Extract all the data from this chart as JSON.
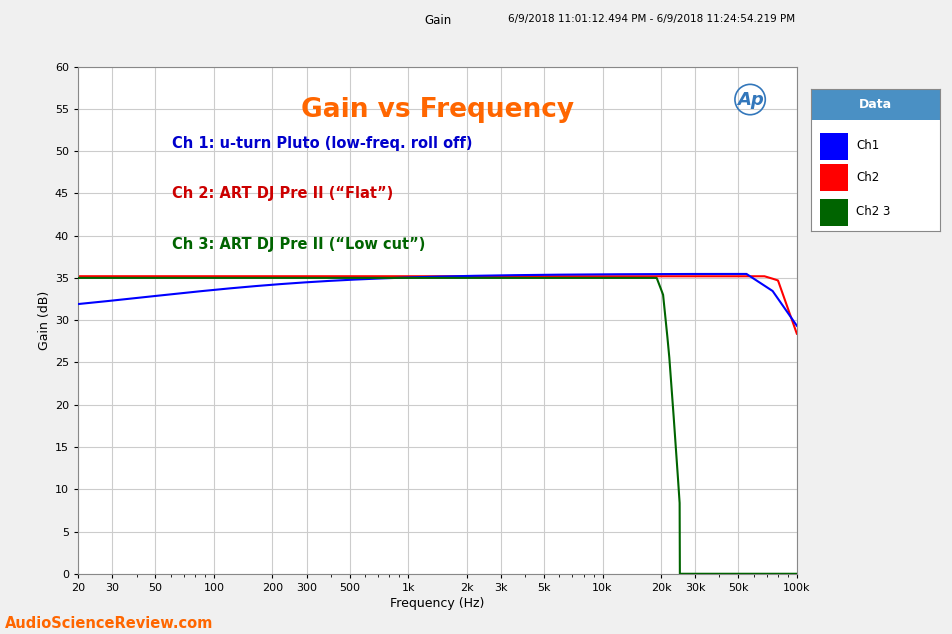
{
  "title": "Gain vs Frequency",
  "supertitle": "Gain",
  "timestamp": "6/9/2018 11:01:12.494 PM - 6/9/2018 11:24:54.219 PM",
  "xlabel": "Frequency (Hz)",
  "ylabel": "Gain (dB)",
  "annotation_ch1": "Ch 1: u-turn Pluto (low-freq. roll off)",
  "annotation_ch2": "Ch 2: ART DJ Pre II (“Flat”)",
  "annotation_ch3": "Ch 3: ART DJ Pre II (“Low cut”)",
  "watermark": "AudioScienceReview.com",
  "legend_title": "Data",
  "legend_entries": [
    "Ch1",
    "Ch2",
    "Ch2 3"
  ],
  "ch1_color": "#0000FF",
  "ch2_color": "#FF0000",
  "ch3_color": "#006400",
  "title_color": "#FF6600",
  "annotation_ch1_color": "#0000CC",
  "annotation_ch2_color": "#CC0000",
  "annotation_ch3_color": "#006400",
  "watermark_color": "#FF6600",
  "bg_color": "#F0F0F0",
  "plot_bg_color": "#FFFFFF",
  "grid_color": "#CCCCCC",
  "ylim": [
    0,
    60
  ],
  "yticks": [
    0,
    5,
    10,
    15,
    20,
    25,
    30,
    35,
    40,
    45,
    50,
    55,
    60
  ],
  "xtick_labels": [
    "20",
    "30",
    "50",
    "100",
    "200",
    "300",
    "500",
    "1k",
    "2k",
    "3k",
    "5k",
    "10k",
    "20k",
    "30k",
    "50k",
    "100k"
  ],
  "xtick_values": [
    20,
    30,
    50,
    100,
    200,
    300,
    500,
    1000,
    2000,
    3000,
    5000,
    10000,
    20000,
    30000,
    50000,
    100000
  ],
  "legend_header_color": "#4A90C4",
  "ch1_plateau": 35.5,
  "ch2_plateau": 35.2,
  "ch3_plateau": 35.0
}
